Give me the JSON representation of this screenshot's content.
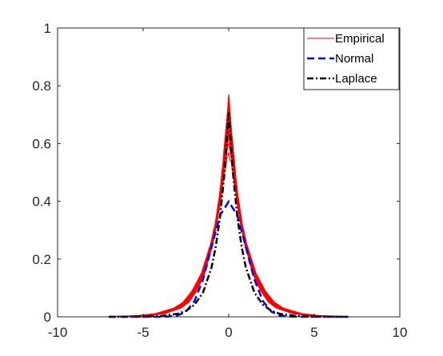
{
  "chart_data": {
    "type": "line",
    "title": "",
    "xlabel": "",
    "ylabel": "",
    "xlim": [
      -10,
      10
    ],
    "ylim": [
      0,
      1
    ],
    "xticks": [
      -10,
      -5,
      0,
      5,
      10
    ],
    "xtick_labels": [
      "-10",
      "-5",
      "0",
      "5",
      "10"
    ],
    "yticks": [
      0,
      0.2,
      0.4,
      0.6,
      0.8,
      1
    ],
    "ytick_labels": [
      "0",
      "0.2",
      "0.4",
      "0.6",
      "0.8",
      "1"
    ],
    "grid": false,
    "box": true,
    "legend_position": "top-right",
    "series": [
      {
        "name": "Empirical",
        "color": "#ff0000",
        "style": "solid",
        "count": 12,
        "peaks": [
          0.77,
          0.76,
          0.74,
          0.72,
          0.71,
          0.7,
          0.68,
          0.66,
          0.64,
          0.62,
          0.6,
          0.57
        ],
        "x": [
          -7,
          -5,
          -4,
          -3,
          -2.5,
          -2,
          -1.5,
          -1,
          -0.75,
          -0.5,
          -0.25,
          0,
          0.25,
          0.5,
          0.75,
          1,
          1.5,
          2,
          2.5,
          3,
          4,
          5,
          7
        ],
        "y": [
          0,
          0.004,
          0.011,
          0.03,
          0.05,
          0.09,
          0.15,
          0.25,
          0.32,
          0.42,
          0.56,
          0.7,
          0.56,
          0.42,
          0.32,
          0.25,
          0.15,
          0.09,
          0.05,
          0.03,
          0.011,
          0.004,
          0
        ]
      },
      {
        "name": "Normal",
        "color": "#0000ff",
        "style": "dashed",
        "x": [
          -7,
          -4,
          -3.5,
          -3,
          -2.5,
          -2,
          -1.5,
          -1,
          -0.5,
          0,
          0.5,
          1,
          1.5,
          2,
          2.5,
          3,
          3.5,
          4,
          7
        ],
        "y": [
          0,
          0.0001,
          0.0009,
          0.0044,
          0.0175,
          0.054,
          0.1295,
          0.242,
          0.352,
          0.399,
          0.352,
          0.242,
          0.1295,
          0.054,
          0.0175,
          0.0044,
          0.0009,
          0.0001,
          0
        ]
      },
      {
        "name": "Laplace",
        "color": "#000000",
        "style": "dashdot",
        "x": [
          -7,
          -6,
          -5,
          -4,
          -3,
          -2.5,
          -2,
          -1.5,
          -1,
          -0.75,
          -0.5,
          -0.25,
          0,
          0.25,
          0.5,
          0.75,
          1,
          1.5,
          2,
          2.5,
          3,
          4,
          5,
          6,
          7
        ],
        "y": [
          0,
          0.0002,
          0.0006,
          0.0024,
          0.0101,
          0.0205,
          0.0415,
          0.084,
          0.1715,
          0.245,
          0.349,
          0.496,
          0.707,
          0.496,
          0.349,
          0.245,
          0.1715,
          0.084,
          0.0415,
          0.0205,
          0.0101,
          0.0024,
          0.0006,
          0.0002,
          0
        ]
      }
    ]
  }
}
